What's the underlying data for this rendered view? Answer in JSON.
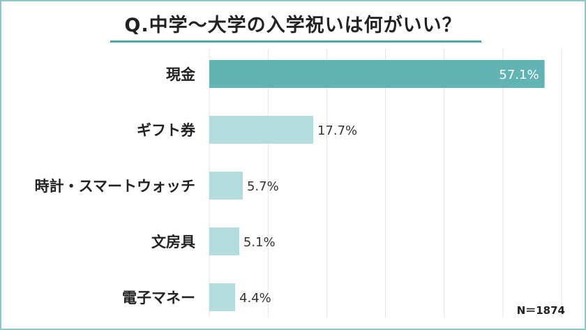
{
  "title": "Q.中学～大学の入学祝いは何がいい？",
  "note": "N＝1874",
  "colors": {
    "accent": "#62b3b3",
    "bar": "#b3dcdc",
    "grid": "#e2e2e2",
    "border": "#8ec7c8",
    "text": "#222222"
  },
  "chart_data": {
    "type": "bar",
    "orientation": "horizontal",
    "categories": [
      "現金",
      "ギフト券",
      "時計・スマートウォッチ",
      "文房具",
      "電子マネー"
    ],
    "values": [
      57.1,
      17.7,
      5.7,
      5.1,
      4.4
    ],
    "value_labels": [
      "57.1%",
      "17.7%",
      "5.7%",
      "5.1%",
      "4.4%"
    ],
    "unit": "%",
    "xlim": [
      0,
      60
    ],
    "grid": true,
    "highlight_index": 0
  }
}
